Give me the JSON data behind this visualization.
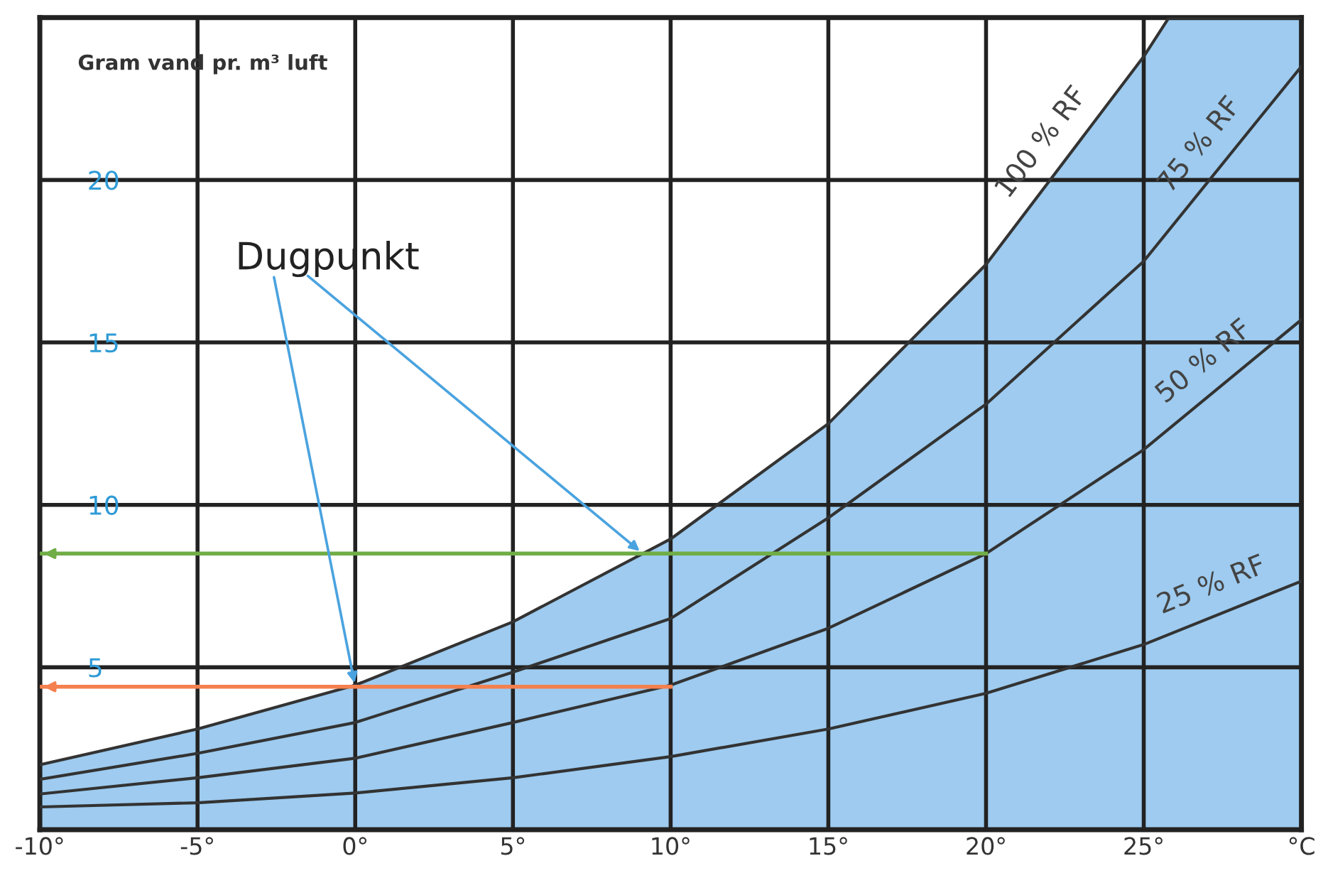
{
  "chart_data": {
    "type": "line",
    "ylabel": "Gram vand pr. m³ luft",
    "xlim": [
      -10,
      30
    ],
    "ylim": [
      0,
      25
    ],
    "xticks": [
      {
        "value": -10,
        "label": "-10°"
      },
      {
        "value": -5,
        "label": "-5°"
      },
      {
        "value": 0,
        "label": "0°"
      },
      {
        "value": 5,
        "label": "5°"
      },
      {
        "value": 10,
        "label": "10°"
      },
      {
        "value": 15,
        "label": "15°"
      },
      {
        "value": 20,
        "label": "20°"
      },
      {
        "value": 25,
        "label": "25°"
      },
      {
        "value": 30,
        "label": "°C"
      }
    ],
    "yticks": [
      {
        "value": 0,
        "label": null
      },
      5,
      10,
      15,
      20,
      {
        "value": 25,
        "label": null
      }
    ],
    "grid": true,
    "legend": false,
    "series": [
      {
        "name": "100 % RF",
        "type": "area",
        "color": "#7db9ea",
        "x": [
          -10,
          -5,
          0,
          5,
          10,
          15,
          20,
          25,
          25.8,
          30
        ],
        "values": [
          2.0,
          3.1,
          4.45,
          6.4,
          8.95,
          12.5,
          17.4,
          23.8,
          25,
          25
        ]
      },
      {
        "name": "75 % RF",
        "color": "#333333",
        "x": [
          -10,
          -5,
          0,
          5,
          10,
          15,
          20,
          25,
          30
        ],
        "values": [
          1.55,
          2.35,
          3.3,
          4.85,
          6.5,
          9.6,
          13.1,
          17.5,
          23.5
        ]
      },
      {
        "name": "50 % RF",
        "color": "#333333",
        "x": [
          -10,
          -5,
          0,
          5,
          10,
          15,
          20,
          25,
          30
        ],
        "values": [
          1.1,
          1.6,
          2.2,
          3.3,
          4.45,
          6.2,
          8.5,
          11.7,
          15.7
        ]
      },
      {
        "name": "25 % RF",
        "color": "#333333",
        "x": [
          -10,
          -5,
          0,
          5,
          10,
          15,
          20,
          25,
          30
        ],
        "values": [
          0.7,
          0.83,
          1.13,
          1.6,
          2.25,
          3.1,
          4.2,
          5.7,
          7.65
        ]
      },
      {
        "color": "#70ad47",
        "x": [
          -10,
          20
        ],
        "values": [
          8.5,
          8.5
        ]
      },
      {
        "color": "#f4804f",
        "x": [
          -10,
          10
        ],
        "values": [
          4.4,
          4.4
        ]
      }
    ],
    "annotations": [
      {
        "text": "Dugpunkt",
        "x": 0,
        "y": 4.4
      }
    ]
  }
}
